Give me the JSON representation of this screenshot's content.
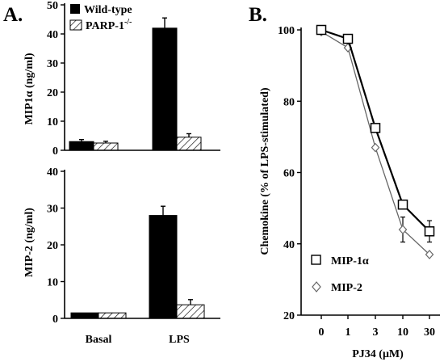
{
  "panel_labels": {
    "a": "A.",
    "b": "B."
  },
  "legend_a": {
    "wild_type": "Wild-type",
    "parp_prefix": "PARP-1",
    "parp_sup": "-/-"
  },
  "chart_data": [
    {
      "type": "bar",
      "panel": "A top",
      "ylabel": "MIP1α (ng/ml)",
      "ylim": [
        0,
        50
      ],
      "yticks": [
        "0",
        "10",
        "20",
        "30",
        "40",
        "50"
      ],
      "categories": [
        "Basal",
        "LPS"
      ],
      "series": [
        {
          "name": "Wild-type",
          "color": "#000000",
          "values": [
            3,
            42
          ],
          "errors": [
            0.7,
            3.5
          ]
        },
        {
          "name": "PARP-1-/-",
          "pattern": "hatched",
          "values": [
            2.5,
            4.5
          ],
          "errors": [
            0.6,
            1.2
          ]
        }
      ]
    },
    {
      "type": "bar",
      "panel": "A bottom",
      "ylabel": "MIP-2 (ng/ml)",
      "ylim": [
        0,
        40
      ],
      "yticks": [
        "0",
        "10",
        "20",
        "30",
        "40"
      ],
      "categories": [
        "Basal",
        "LPS"
      ],
      "series": [
        {
          "name": "Wild-type",
          "color": "#000000",
          "values": [
            1.5,
            28
          ],
          "errors": [
            0,
            2.5
          ]
        },
        {
          "name": "PARP-1-/-",
          "pattern": "hatched",
          "values": [
            1.5,
            3.7
          ],
          "errors": [
            0,
            1.4
          ]
        }
      ]
    },
    {
      "type": "line",
      "panel": "B",
      "xlabel": "PJ34 (μM)",
      "ylabel": "Chemokine (% of LPS-stimulated)",
      "x": [
        "0",
        "1",
        "3",
        "10",
        "30"
      ],
      "ylim": [
        20,
        100
      ],
      "yticks": [
        "20",
        "40",
        "60",
        "80",
        "100"
      ],
      "series": [
        {
          "name": "MIP-1α",
          "marker": "square",
          "color": "#000000",
          "values": [
            100,
            97.5,
            72.5,
            51,
            43.5
          ],
          "errors": [
            0,
            0,
            0,
            0,
            3
          ]
        },
        {
          "name": "MIP-2",
          "marker": "diamond",
          "color": "#666666",
          "values": [
            99.5,
            95,
            67,
            44,
            37
          ],
          "errors": [
            0,
            0,
            0,
            3.5,
            0
          ]
        }
      ]
    }
  ]
}
